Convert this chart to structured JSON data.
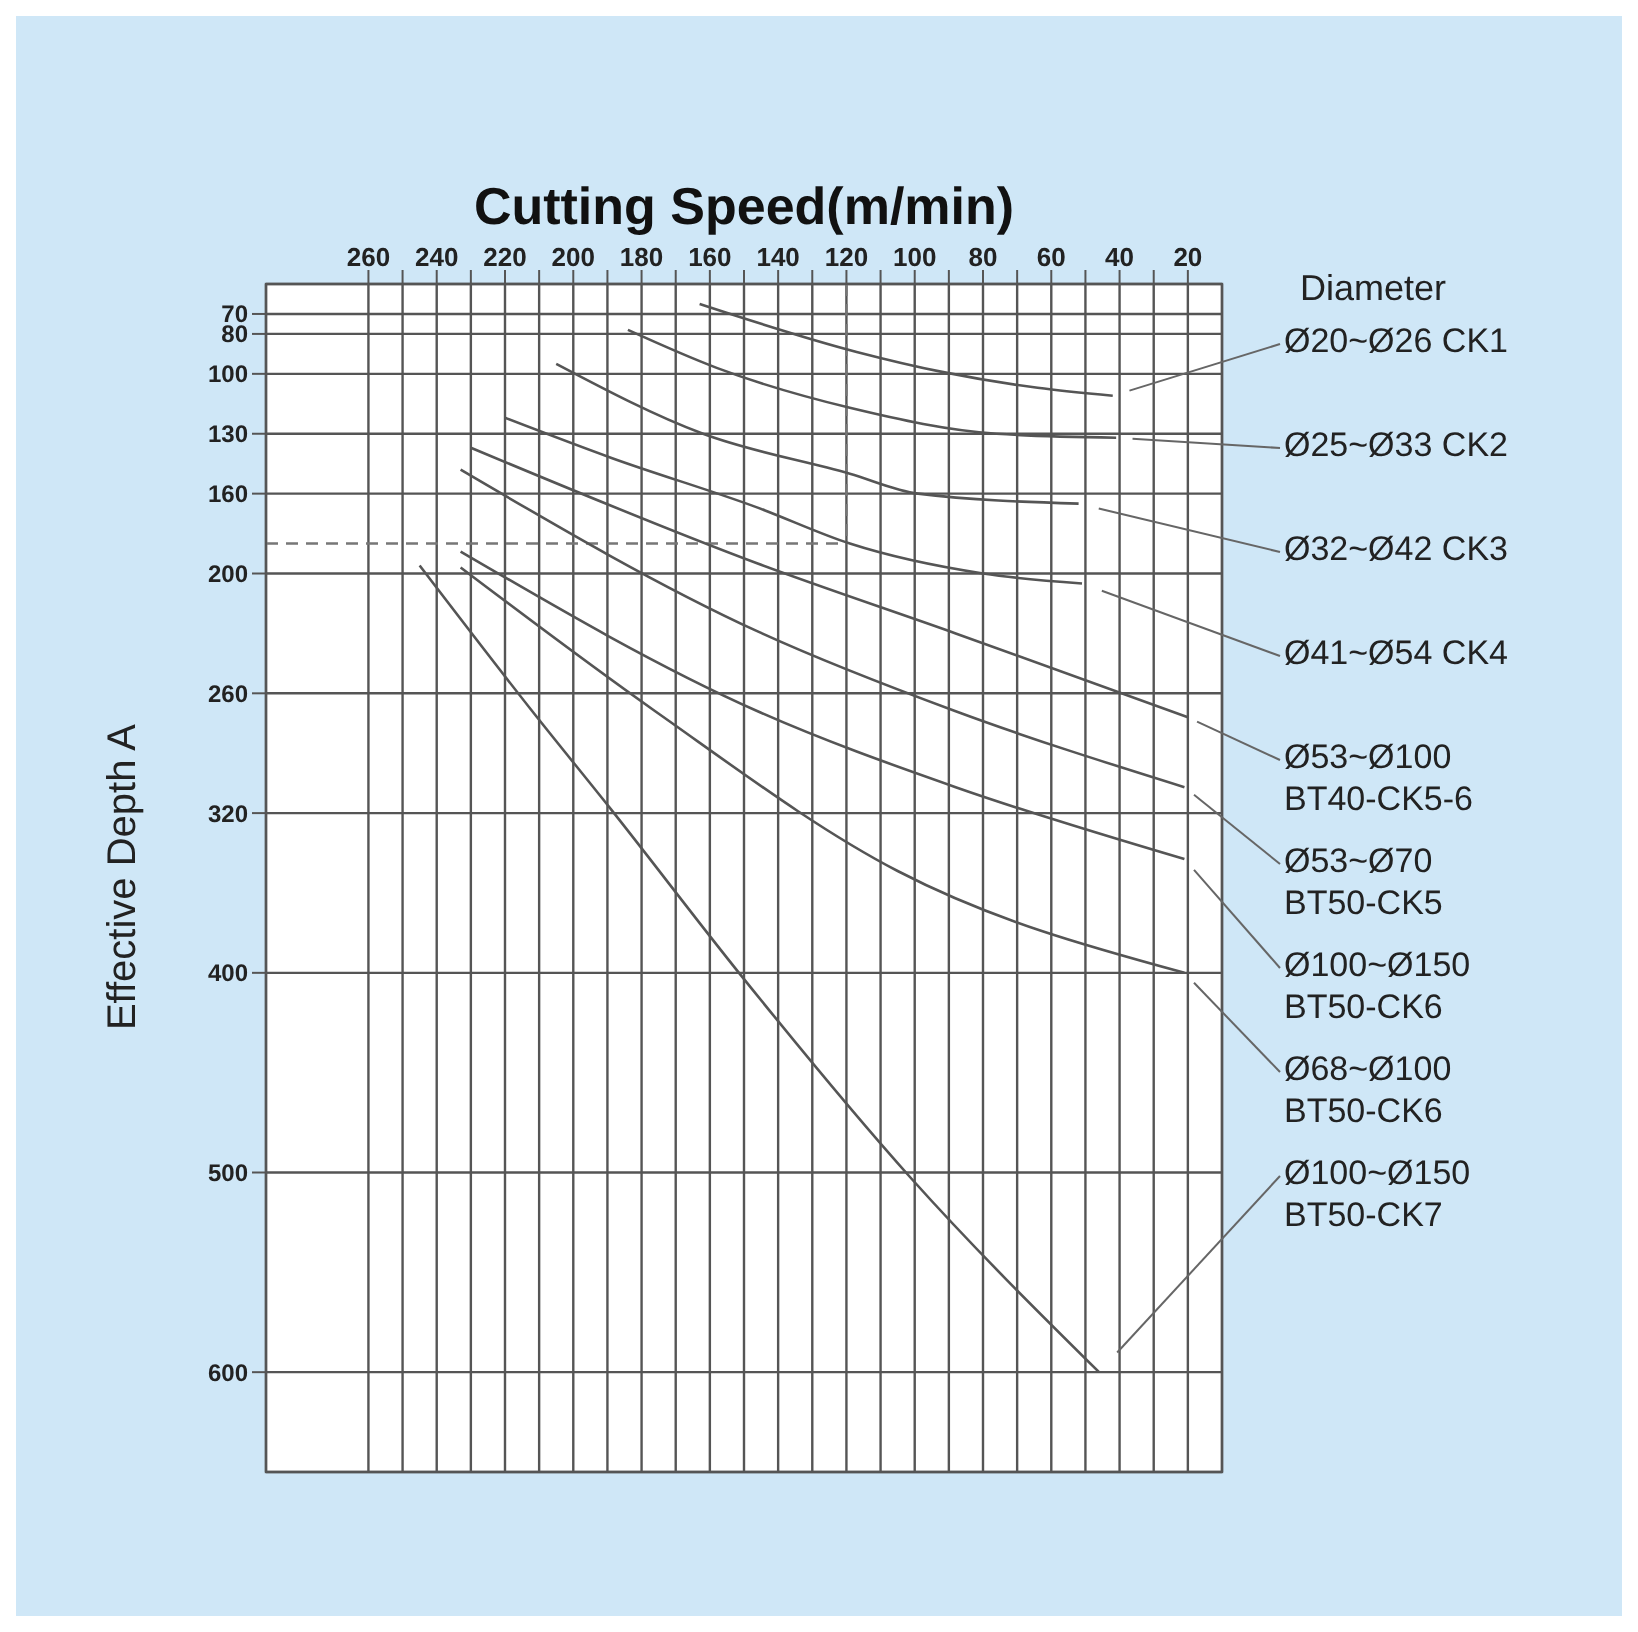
{
  "chart_data": {
    "type": "line",
    "xlabel": "Cutting Speed(m/min)",
    "ylabel": "Effective Depth A",
    "legend_title": "Diameter",
    "xlim": [
      290,
      10
    ],
    "ylim": [
      650,
      55
    ],
    "xticks": [
      260,
      {
        "value": 250,
        "label": null
      },
      240,
      {
        "value": 230,
        "label": null
      },
      220,
      {
        "value": 210,
        "label": null
      },
      200,
      {
        "value": 190,
        "label": null
      },
      180,
      {
        "value": 170,
        "label": null
      },
      160,
      {
        "value": 150,
        "label": null
      },
      140,
      {
        "value": 130,
        "label": null
      },
      120,
      {
        "value": 110,
        "label": null
      },
      100,
      {
        "value": 90,
        "label": null
      },
      80,
      {
        "value": 70,
        "label": null
      },
      60,
      {
        "value": 50,
        "label": null
      },
      40,
      {
        "value": 30,
        "label": null
      },
      20
    ],
    "yticks": [
      70,
      80,
      100,
      130,
      160,
      200,
      260,
      320,
      400,
      500,
      600
    ],
    "grid": true,
    "ref_lines": [
      {
        "axis": "x",
        "value": 120,
        "color": "#777777",
        "line_style": "dashed"
      },
      {
        "axis": "y",
        "value": 185,
        "color": "#777777",
        "line_style": "dashed"
      }
    ],
    "series": [
      {
        "name": "Ø20~Ø26 CK1",
        "color": "#555555",
        "x": [
          163,
          117,
          92,
          64,
          42
        ],
        "values": [
          65,
          89,
          99,
          107,
          111
        ]
      },
      {
        "name": "Ø25~Ø33 CK2",
        "color": "#555555",
        "x": [
          184,
          158,
          119,
          76,
          41
        ],
        "values": [
          78,
          97,
          117,
          130,
          132
        ]
      },
      {
        "name": "Ø32~Ø42 CK3",
        "color": "#555555",
        "x": [
          205,
          162,
          119,
          99,
          52
        ],
        "values": [
          95,
          130,
          150,
          160,
          165
        ]
      },
      {
        "name": "Ø41~Ø54 CK4",
        "color": "#555555",
        "x": [
          220,
          189,
          146,
          119,
          80,
          51
        ],
        "values": [
          122,
          142,
          167,
          185,
          200,
          205
        ]
      },
      {
        "name": "Ø53~Ø100 BT40-CK5-6",
        "color": "#555555",
        "x": [
          230,
          146,
          88,
          20
        ],
        "values": [
          137,
          195,
          230,
          272
        ]
      },
      {
        "name": "Ø53~Ø70 BT50-CK5",
        "color": "#555555",
        "x": [
          233,
          146,
          88,
          21
        ],
        "values": [
          148,
          229,
          269,
          307
        ]
      },
      {
        "name": "Ø100~Ø150 BT50-CK6",
        "color": "#555555",
        "x": [
          233,
          146,
          88,
          21
        ],
        "values": [
          189,
          269,
          307,
          343
        ]
      },
      {
        "name": "Ø68~Ø100 BT50-CK6",
        "color": "#555555",
        "x": [
          233,
          176,
          105,
          21
        ],
        "values": [
          197,
          269,
          349,
          400
        ]
      },
      {
        "name": "Ø100~Ø150 BT50-CK7",
        "color": "#555555",
        "x": [
          245,
          212,
          189,
          151,
          101,
          46
        ],
        "values": [
          196,
          269,
          318,
          401,
          503,
          600
        ]
      }
    ]
  }
}
